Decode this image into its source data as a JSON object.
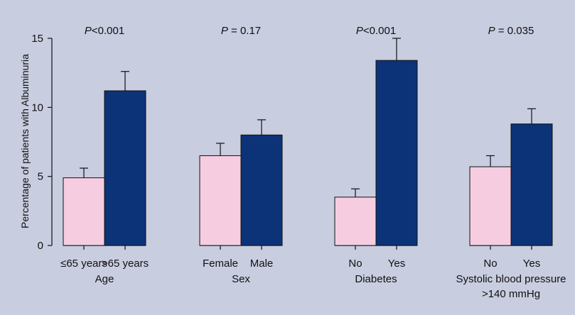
{
  "chart_data": {
    "type": "bar",
    "ylabel": "Percentage of patients with Albuminuria",
    "ylim": [
      0,
      15
    ],
    "yticks": [
      "0",
      "5",
      "10",
      "15"
    ],
    "grid": false,
    "legend": "none",
    "colors": {
      "low": "#f6cde0",
      "high": "#0c3377",
      "background": "#c9cde0"
    },
    "groups": [
      {
        "label": "Age",
        "label_line2": "",
        "p_prefix": "P",
        "p_text": "<0.001",
        "bars": [
          {
            "category": "≤65 years",
            "value": 4.9,
            "error": 0.7,
            "color": "low"
          },
          {
            "category": ">65 years",
            "value": 11.2,
            "error": 1.4,
            "color": "high"
          }
        ]
      },
      {
        "label": "Sex",
        "label_line2": "",
        "p_prefix": "P",
        "p_text": " = 0.17",
        "bars": [
          {
            "category": "Female",
            "value": 6.5,
            "error": 0.9,
            "color": "low"
          },
          {
            "category": "Male",
            "value": 8.0,
            "error": 1.1,
            "color": "high"
          }
        ]
      },
      {
        "label": "Diabetes",
        "label_line2": "",
        "p_prefix": "P",
        "p_text": "<0.001",
        "bars": [
          {
            "category": "No",
            "value": 3.5,
            "error": 0.6,
            "color": "low"
          },
          {
            "category": "Yes",
            "value": 13.4,
            "error": 1.6,
            "color": "high"
          }
        ]
      },
      {
        "label": "Systolic blood pressure",
        "label_line2": ">140 mmHg",
        "p_prefix": "P",
        "p_text": " = 0.035",
        "bars": [
          {
            "category": "No",
            "value": 5.7,
            "error": 0.8,
            "color": "low"
          },
          {
            "category": "Yes",
            "value": 8.8,
            "error": 1.1,
            "color": "high"
          }
        ]
      }
    ]
  }
}
